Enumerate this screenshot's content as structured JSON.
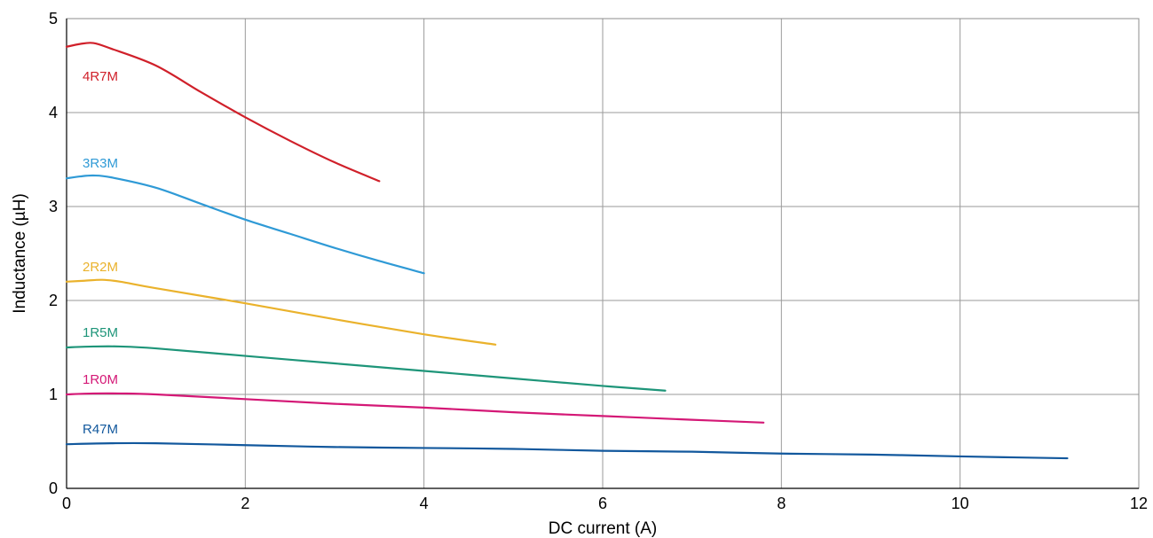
{
  "chart_data": {
    "type": "line",
    "title": "",
    "xlabel": "DC current (A)",
    "ylabel": "Inductance (µH)",
    "xlim": [
      0,
      12
    ],
    "ylim": [
      0,
      5
    ],
    "x_ticks": [
      "0",
      "2",
      "4",
      "6",
      "8",
      "10",
      "12"
    ],
    "y_ticks": [
      "0",
      "1",
      "2",
      "3",
      "4",
      "5"
    ],
    "grid": true,
    "legend": "inline labels above each curve at the left",
    "series": [
      {
        "name": "4R7M",
        "color": "#d0202a",
        "x": [
          0,
          0.15,
          0.3,
          0.5,
          1.0,
          1.5,
          2.0,
          2.5,
          3.0,
          3.5
        ],
        "y": [
          4.7,
          4.73,
          4.74,
          4.68,
          4.5,
          4.22,
          3.95,
          3.7,
          3.47,
          3.27
        ]
      },
      {
        "name": "3R3M",
        "color": "#2f9ad6",
        "x": [
          0,
          0.15,
          0.3,
          0.5,
          1.0,
          1.5,
          2.0,
          2.5,
          3.0,
          3.5,
          4.0
        ],
        "y": [
          3.3,
          3.32,
          3.33,
          3.31,
          3.2,
          3.03,
          2.86,
          2.71,
          2.56,
          2.42,
          2.29
        ]
      },
      {
        "name": "2R2M",
        "color": "#eab22c",
        "x": [
          0,
          0.2,
          0.4,
          0.6,
          1.0,
          2.0,
          3.0,
          4.0,
          4.8
        ],
        "y": [
          2.2,
          2.21,
          2.22,
          2.2,
          2.13,
          1.97,
          1.8,
          1.64,
          1.53
        ]
      },
      {
        "name": "1R5M",
        "color": "#1e9579",
        "x": [
          0,
          0.3,
          0.6,
          1.0,
          2.0,
          3.0,
          4.0,
          5.0,
          6.0,
          6.7
        ],
        "y": [
          1.5,
          1.51,
          1.51,
          1.49,
          1.41,
          1.33,
          1.25,
          1.17,
          1.09,
          1.04
        ]
      },
      {
        "name": "1R0M",
        "color": "#d41876",
        "x": [
          0,
          0.3,
          0.6,
          1.0,
          2.0,
          3.0,
          4.0,
          5.0,
          6.0,
          7.0,
          7.8
        ],
        "y": [
          1.0,
          1.01,
          1.01,
          1.0,
          0.95,
          0.9,
          0.86,
          0.81,
          0.77,
          0.73,
          0.7
        ]
      },
      {
        "name": "R47M",
        "color": "#12589d",
        "x": [
          0,
          0.5,
          1.0,
          2.0,
          3.0,
          4.0,
          5.0,
          6.0,
          7.0,
          8.0,
          9.0,
          10.0,
          11.2
        ],
        "y": [
          0.47,
          0.48,
          0.48,
          0.46,
          0.44,
          0.43,
          0.42,
          0.4,
          0.39,
          0.37,
          0.36,
          0.34,
          0.32
        ]
      }
    ]
  }
}
